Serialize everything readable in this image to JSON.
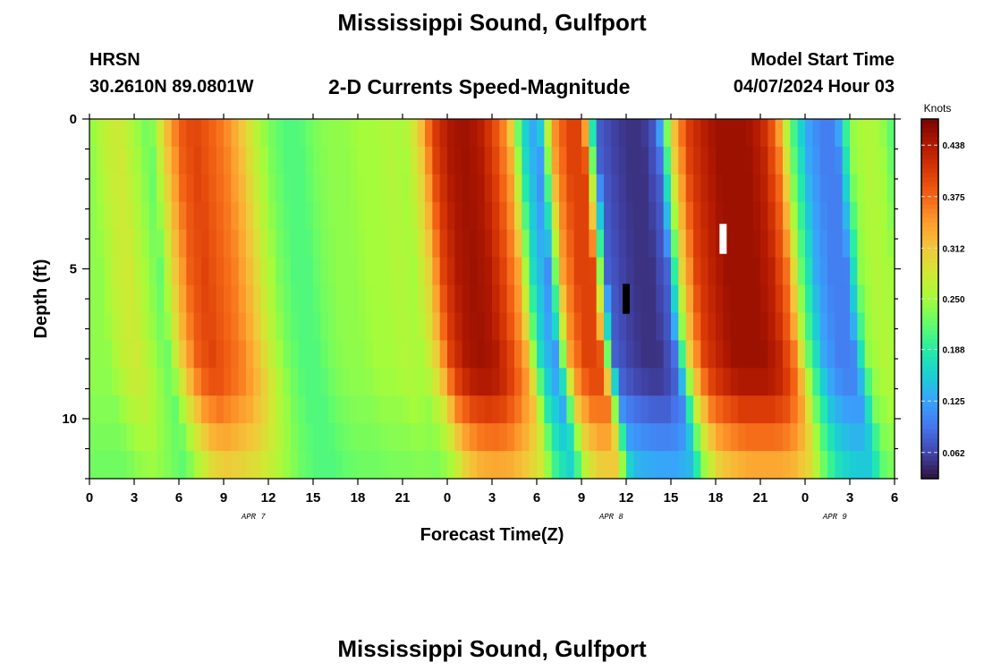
{
  "page": {
    "title": "Mississippi Sound, Gulfport",
    "station": "HRSN",
    "coords": "30.2610N  89.0801W",
    "subtitle": "2-D Currents Speed-Magnitude",
    "model_start_label": "Model Start Time",
    "model_start_value": "04/07/2024 Hour 03",
    "footer_title": "Mississippi Sound, Gulfport"
  },
  "chart_data": {
    "type": "heatmap",
    "xlabel": "Forecast Time(Z)",
    "ylabel": "Depth (ft)",
    "colorbar_label": "Knots",
    "x_ticks": [
      "0",
      "3",
      "6",
      "9",
      "12",
      "15",
      "18",
      "21",
      "0",
      "3",
      "6",
      "9",
      "12",
      "15",
      "18",
      "21",
      "0",
      "3",
      "6"
    ],
    "date_labels": [
      {
        "label": "APR 7",
        "at_hour": 11
      },
      {
        "label": "APR 8",
        "at_hour": 35
      },
      {
        "label": "APR 9",
        "at_hour": 50
      }
    ],
    "x_range_hours": [
      0,
      54
    ],
    "y_ticks": [
      0,
      5,
      10
    ],
    "y_range_ft": [
      0,
      12
    ],
    "value_range": [
      0.03,
      0.47
    ],
    "colorbar_ticks": [
      0.062,
      0.125,
      0.188,
      0.25,
      0.312,
      0.375,
      0.438
    ],
    "colormap": [
      "#30123b",
      "#4145ab",
      "#4675ed",
      "#39a2fc",
      "#1bcfd4",
      "#24eca6",
      "#61fc6c",
      "#a4fc3b",
      "#d1e834",
      "#f3c63a",
      "#fe9b2d",
      "#f36315",
      "#d93806",
      "#b11901",
      "#7a0402"
    ],
    "time_profile_surface": [
      0.24,
      0.27,
      0.28,
      0.25,
      0.22,
      0.31,
      0.38,
      0.4,
      0.38,
      0.36,
      0.32,
      0.27,
      0.23,
      0.21,
      0.21,
      0.23,
      0.24,
      0.24,
      0.25,
      0.25,
      0.26,
      0.25,
      0.3,
      0.4,
      0.44,
      0.45,
      0.44,
      0.4,
      0.34,
      0.17,
      0.11,
      0.34,
      0.4,
      0.4,
      0.08,
      0.06,
      0.05,
      0.05,
      0.08,
      0.3,
      0.4,
      0.43,
      0.45,
      0.45,
      0.45,
      0.43,
      0.37,
      0.22,
      0.13,
      0.1,
      0.1,
      0.24,
      0.26,
      0.25,
      0.2
    ],
    "markers": [
      {
        "hour": 36,
        "depth_ft": [
          5.5,
          6.5
        ],
        "color": "#000000"
      },
      {
        "hour": 42.5,
        "depth_ft": [
          3.5,
          4.5
        ],
        "color": "#ffffff"
      }
    ]
  }
}
